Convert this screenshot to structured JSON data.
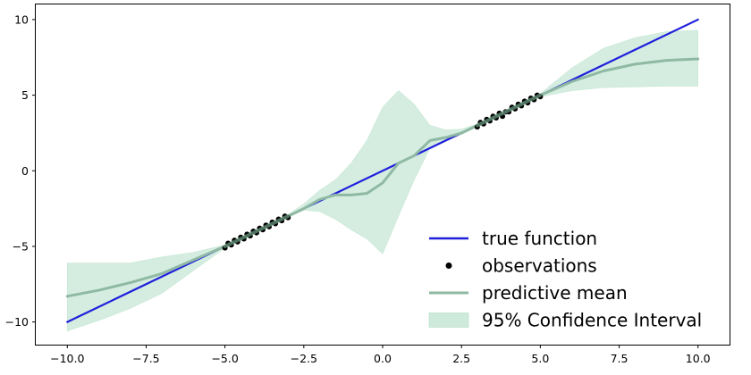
{
  "chart_data": {
    "type": "line",
    "title": "",
    "xlabel": "",
    "ylabel": "",
    "xlim": [
      -11.0,
      11.0
    ],
    "ylim": [
      -11.5,
      11.0
    ],
    "xticks": [
      -10.0,
      -7.5,
      -5.0,
      -2.5,
      0.0,
      2.5,
      5.0,
      7.5,
      10.0
    ],
    "xtick_labels": [
      "−10.0",
      "−7.5",
      "−5.0",
      "−2.5",
      "0.0",
      "2.5",
      "5.0",
      "7.5",
      "10.0"
    ],
    "yticks": [
      -10,
      -5,
      0,
      5,
      10
    ],
    "ytick_labels": [
      "−10",
      "−5",
      "0",
      "5",
      "10"
    ],
    "grid": false,
    "legend_position": "lower-right",
    "colors": {
      "true_function": "#1f1fdc",
      "observations": "#000000",
      "predictive_mean": "#8fb9a3",
      "confidence_band": "#cdeadb"
    },
    "series": [
      {
        "name": "true function",
        "kind": "line",
        "x": [
          -10,
          10
        ],
        "y": [
          -10,
          10
        ]
      },
      {
        "name": "predictive mean",
        "kind": "line",
        "x": [
          -10,
          -9,
          -8,
          -7,
          -6,
          -5,
          -4,
          -3,
          -2.5,
          -2,
          -1.5,
          -1,
          -0.5,
          0,
          0.5,
          1,
          1.5,
          2,
          2.5,
          3,
          4,
          5,
          6,
          7,
          8,
          9,
          10
        ],
        "y": [
          -8.3,
          -7.9,
          -7.4,
          -6.8,
          -5.9,
          -5.0,
          -4.0,
          -3.0,
          -2.5,
          -1.9,
          -1.6,
          -1.6,
          -1.5,
          -0.8,
          0.5,
          1.0,
          2.0,
          2.2,
          2.5,
          3.0,
          4.0,
          5.0,
          5.9,
          6.6,
          7.05,
          7.3,
          7.4
        ]
      },
      {
        "name": "95% Confidence Interval",
        "kind": "band",
        "x": [
          -10,
          -9,
          -8,
          -7,
          -6,
          -5,
          -4,
          -3,
          -2.5,
          -2,
          -1.5,
          -1,
          -0.5,
          0,
          0.5,
          1,
          1.5,
          2,
          2.5,
          3,
          4,
          5,
          6,
          7,
          8,
          9,
          10
        ],
        "lower": [
          -10.6,
          -9.9,
          -9.1,
          -8.1,
          -6.6,
          -5.1,
          -4.1,
          -3.1,
          -2.6,
          -2.7,
          -3.2,
          -3.9,
          -4.5,
          -5.5,
          -3.0,
          -0.6,
          1.5,
          2.0,
          2.4,
          2.9,
          3.9,
          4.9,
          5.3,
          5.5,
          5.55,
          5.6,
          5.6
        ],
        "upper": [
          -6.1,
          -6.1,
          -6.1,
          -5.7,
          -5.4,
          -4.9,
          -3.9,
          -2.9,
          -2.2,
          -1.3,
          -0.6,
          0.5,
          2.0,
          4.2,
          5.3,
          4.4,
          3.0,
          2.7,
          2.75,
          3.1,
          4.1,
          5.1,
          6.8,
          8.1,
          8.8,
          9.2,
          9.3
        ]
      },
      {
        "name": "observations",
        "kind": "scatter",
        "x": [
          -5.0,
          -4.9,
          -4.8,
          -4.7,
          -4.6,
          -4.5,
          -4.4,
          -4.3,
          -4.2,
          -4.1,
          -4.0,
          -3.9,
          -3.8,
          -3.7,
          -3.6,
          -3.5,
          -3.4,
          -3.3,
          -3.2,
          -3.1,
          -3.0,
          3.0,
          3.1,
          3.2,
          3.3,
          3.4,
          3.5,
          3.6,
          3.7,
          3.8,
          3.9,
          4.0,
          4.1,
          4.2,
          4.3,
          4.4,
          4.5,
          4.6,
          4.7,
          4.8,
          4.9,
          5.0
        ],
        "y": [
          -5.1,
          -4.8,
          -4.9,
          -4.6,
          -4.7,
          -4.4,
          -4.5,
          -4.2,
          -4.3,
          -4.0,
          -4.1,
          -3.8,
          -3.9,
          -3.6,
          -3.7,
          -3.4,
          -3.5,
          -3.2,
          -3.3,
          -3.0,
          -3.1,
          2.9,
          3.2,
          3.1,
          3.4,
          3.3,
          3.6,
          3.5,
          3.8,
          3.6,
          3.9,
          3.9,
          4.2,
          4.1,
          4.4,
          4.3,
          4.6,
          4.5,
          4.8,
          4.7,
          5.0,
          4.9
        ]
      }
    ],
    "legend": [
      {
        "label": "true function",
        "symbol": "line",
        "color": "#1f1fdc"
      },
      {
        "label": "observations",
        "symbol": "dot",
        "color": "#000000"
      },
      {
        "label": "predictive mean",
        "symbol": "line",
        "color": "#8fb9a3"
      },
      {
        "label": "95% Confidence Interval",
        "symbol": "patch",
        "color": "#cdeadb"
      }
    ]
  }
}
